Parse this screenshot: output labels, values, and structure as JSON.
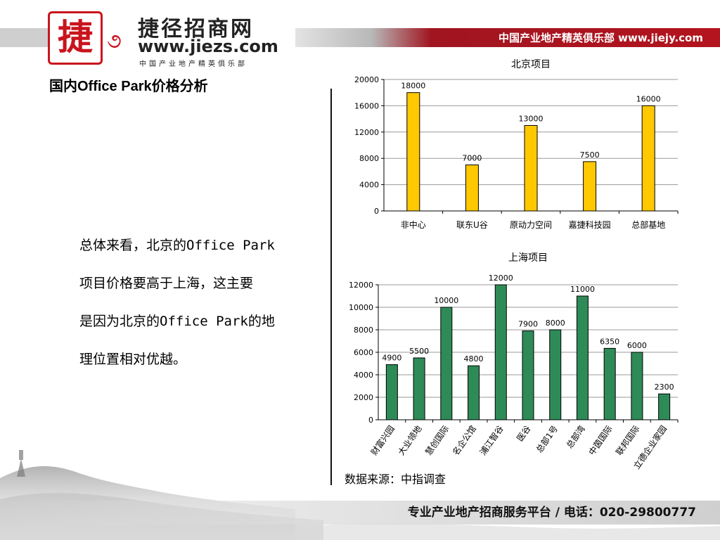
{
  "header": {
    "tagline": "中国产业地产精英俱乐部 www.jiejy.com",
    "logo_name": "捷径招商网",
    "logo_url": "www.jiezs.com",
    "logo_sub": "中国产业地产精英俱乐部",
    "logo_seal": "捷"
  },
  "page_title": "国内Office Park价格分析",
  "body_lines": [
    "总体来看，北京的Office Park",
    "项目价格要高于上海，这主要",
    "是因为北京的Office Park的地",
    "理位置相对优越。"
  ],
  "source": "数据来源：中指调查",
  "footer": "专业产业地产招商服务平台 / 电话：020-29800777",
  "chart_data": [
    {
      "type": "bar",
      "title": "北京项目",
      "categories": [
        "非中心",
        "联东U谷",
        "原动力空间",
        "嘉捷科技园",
        "总部基地"
      ],
      "values": [
        18000,
        7000,
        13000,
        7500,
        16000
      ],
      "yticks": [
        0,
        4000,
        8000,
        12000,
        16000,
        20000
      ],
      "ylim": [
        0,
        20000
      ],
      "grid": true,
      "bar_color": "#ffc800"
    },
    {
      "type": "bar",
      "title": "上海项目",
      "categories": [
        "财富兴园",
        "大业领地",
        "慧创国际",
        "名企公馆",
        "浦江智谷",
        "医谷",
        "总部1号",
        "总部湾",
        "中茵国际",
        "联邦国际",
        "立德企业家园"
      ],
      "values": [
        4900,
        5500,
        10000,
        4800,
        12000,
        7900,
        8000,
        11000,
        6350,
        6000,
        2300
      ],
      "yticks": [
        0,
        2000,
        4000,
        6000,
        8000,
        10000,
        12000
      ],
      "ylim": [
        0,
        12000
      ],
      "grid": true,
      "bar_color": "#2e8b57"
    }
  ]
}
